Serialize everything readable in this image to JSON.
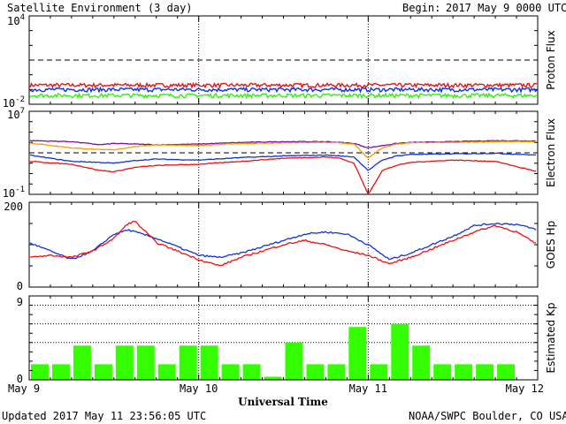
{
  "header": {
    "title": "Satellite Environment (3 day)",
    "begin_label": "Begin:",
    "begin_value": "2017 May 9 0000 UTC"
  },
  "footer": {
    "updated": "Updated 2017 May 11 23:56:05 UTC",
    "credit": "NOAA/SWPC Boulder, CO USA"
  },
  "colors": {
    "red": "#ee1111",
    "blue": "#1133dd",
    "green": "#33ee11",
    "purple": "#7711aa",
    "orange": "#ff9900",
    "kp_bar": "#33ff00"
  },
  "chart_data": [
    {
      "type": "line",
      "ylabel": "Proton Flux",
      "scale": "log",
      "ylim_exp": [
        -2,
        4
      ],
      "ytick_labels": [
        {
          "base": "10",
          "exp": "4"
        },
        {
          "base": "10",
          "exp": "-2"
        }
      ],
      "threshold": 10,
      "series_colors": [
        "red",
        "blue",
        "green"
      ],
      "series": [
        {
          "color": "red",
          "values": [
            0.2,
            0.2,
            0.2,
            0.2,
            0.2,
            0.2,
            0.2
          ]
        },
        {
          "color": "blue",
          "values": [
            0.1,
            0.1,
            0.1,
            0.1,
            0.1,
            0.1,
            0.1
          ]
        },
        {
          "color": "green",
          "values": [
            0.04,
            0.04,
            0.04,
            0.04,
            0.04,
            0.04,
            0.04
          ]
        }
      ]
    },
    {
      "type": "line",
      "ylabel": "Electron Flux",
      "scale": "log",
      "ylim_exp": [
        -1,
        7
      ],
      "ytick_labels": [
        {
          "base": "10",
          "exp": "7"
        },
        {
          "base": "10",
          "exp": "-1"
        }
      ],
      "threshold": 1000,
      "x_hours": [
        0,
        6,
        10,
        12,
        15,
        18,
        24,
        30,
        36,
        42,
        44,
        46,
        48,
        50,
        52,
        54,
        60,
        66,
        72
      ],
      "series": [
        {
          "color": "purple",
          "values": [
            15000,
            12000,
            6000,
            8000,
            7000,
            6000,
            7000,
            10000,
            12000,
            12000,
            10000,
            8000,
            3000,
            5000,
            8000,
            10000,
            12000,
            15000,
            14000
          ]
        },
        {
          "color": "orange",
          "values": [
            9000,
            3000,
            2000,
            2000,
            4000,
            6000,
            5000,
            8000,
            9000,
            10000,
            9000,
            7000,
            300,
            3000,
            7000,
            9000,
            10000,
            12000,
            12000
          ]
        },
        {
          "color": "blue",
          "values": [
            600,
            150,
            120,
            100,
            180,
            250,
            200,
            350,
            500,
            600,
            500,
            400,
            20,
            200,
            500,
            700,
            800,
            900,
            600
          ]
        },
        {
          "color": "red",
          "values": [
            150,
            80,
            20,
            15,
            40,
            60,
            80,
            150,
            300,
            400,
            300,
            100,
            0.1,
            20,
            60,
            120,
            200,
            150,
            15
          ]
        }
      ]
    },
    {
      "type": "line",
      "ylabel": "GOES Hp",
      "scale": "linear",
      "ylim": [
        0,
        200
      ],
      "ytick_labels": [
        "200",
        "0"
      ],
      "x_hours": [
        0,
        3,
        6,
        9,
        12,
        14,
        15,
        18,
        21,
        24,
        27,
        30,
        33,
        36,
        39,
        42,
        45,
        48,
        51,
        54,
        57,
        60,
        63,
        66,
        69,
        72
      ],
      "series": [
        {
          "color": "blue",
          "values": [
            105,
            85,
            65,
            85,
            125,
            135,
            130,
            115,
            95,
            75,
            70,
            80,
            95,
            110,
            125,
            130,
            125,
            100,
            65,
            80,
            100,
            120,
            145,
            150,
            148,
            135
          ]
        },
        {
          "color": "red",
          "values": [
            70,
            75,
            70,
            85,
            115,
            150,
            155,
            105,
            85,
            65,
            50,
            70,
            85,
            100,
            110,
            100,
            85,
            75,
            55,
            70,
            90,
            110,
            130,
            145,
            130,
            100
          ]
        }
      ]
    },
    {
      "type": "bar",
      "ylabel": "Estimated Kp",
      "ylim": [
        0,
        9
      ],
      "ytick_labels": [
        "9",
        "0"
      ],
      "grid_levels": [
        4,
        6,
        8,
        9
      ],
      "values": [
        1.67,
        1.67,
        3.67,
        1.67,
        3.67,
        3.67,
        1.67,
        3.67,
        3.67,
        1.67,
        1.67,
        0.33,
        4,
        1.67,
        1.67,
        5.67,
        1.67,
        6,
        3.67,
        1.67,
        1.67,
        1.67,
        1.67,
        0
      ]
    }
  ],
  "xaxis": {
    "tick_labels": [
      "May 9",
      "May 10",
      "May 11",
      "May 12"
    ],
    "title": "Universal Time"
  }
}
